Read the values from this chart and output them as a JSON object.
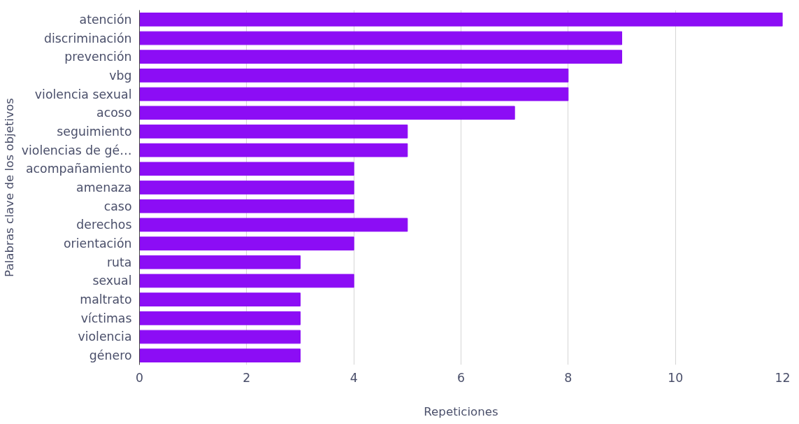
{
  "chart_data": {
    "type": "bar",
    "orientation": "horizontal",
    "xlabel": "Repeticiones",
    "ylabel": "Palabras clave de los objetivos",
    "categories": [
      "atención",
      "discriminación",
      "prevención",
      "vbg",
      "violencia sexual",
      "acoso",
      "seguimiento",
      "violencias de gé…",
      "acompañamiento",
      "amenaza",
      "caso",
      "derechos",
      "orientación",
      "ruta",
      "sexual",
      "maltrato",
      "víctimas",
      "violencia",
      "género"
    ],
    "values": [
      12,
      9,
      9,
      8,
      8,
      7,
      5,
      5,
      4,
      4,
      4,
      5,
      4,
      3,
      4,
      3,
      3,
      3,
      3
    ],
    "color": "#8c0df5",
    "xlim": [
      0,
      12
    ],
    "xticks": [
      0,
      2,
      4,
      6,
      8,
      10,
      12
    ],
    "grid": "x"
  }
}
